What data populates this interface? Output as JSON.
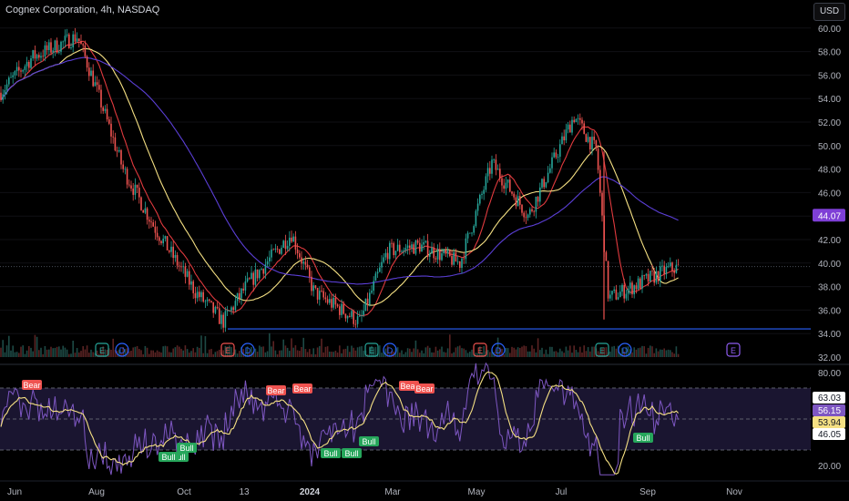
{
  "header": {
    "title": "Cognex Corporation, 4h, NASDAQ",
    "currency_button": "USD"
  },
  "colors": {
    "background": "#000000",
    "up": "#26a69a",
    "down": "#ef5350",
    "ma_fast": "#e03a3e",
    "ma_mid": "#f5e083",
    "ma_slow": "#5b3fd6",
    "support": "#2962ff",
    "rsi": "#7e57c2",
    "rsi_signal": "#f5e083"
  },
  "price_axis": {
    "labels": [
      "60.00",
      "58.00",
      "56.00",
      "54.00",
      "52.00",
      "50.00",
      "48.00",
      "46.00",
      "44.00",
      "42.00",
      "40.00",
      "38.00",
      "36.00",
      "34.00",
      "32.00"
    ],
    "current_price_tag": "44.07"
  },
  "rsi_axis": {
    "labels": [
      "80.00",
      "20.00"
    ],
    "value_tags": [
      {
        "text": "63.03",
        "style": "white"
      },
      {
        "text": "56.15",
        "style": "violet"
      },
      {
        "text": "53.94",
        "style": "yellow"
      },
      {
        "text": "46.05",
        "style": "white"
      }
    ]
  },
  "time_axis": {
    "labels": [
      "Jun",
      "Aug",
      "Oct",
      "13",
      "2024",
      "Mar",
      "May",
      "Jul",
      "Sep",
      "Nov"
    ]
  },
  "event_markers": [
    "E",
    "D",
    "E",
    "D",
    "E",
    "D",
    "E",
    "D",
    "E",
    "D",
    "E"
  ],
  "rsi_signals": [
    "Bear",
    "Bear",
    "Bear",
    "Bear",
    "Bear",
    "Bull",
    "Bull",
    "Bull",
    "Bull",
    "Bull",
    "Bull",
    "Bull"
  ],
  "chart_data": {
    "type": "candlestick",
    "title": "Cognex Corporation, 4h, NASDAQ",
    "price_range": [
      32,
      61
    ],
    "support_level": 34.4,
    "close_path": [
      {
        "x": "Jun",
        "y": 54.5
      },
      {
        "x": "Jul",
        "y": 57.5
      },
      {
        "x": "Jul-end",
        "y": 59.3
      },
      {
        "x": "Aug",
        "y": 55.0
      },
      {
        "x": "Aug-mid",
        "y": 48.0
      },
      {
        "x": "Sep",
        "y": 43.0
      },
      {
        "x": "Oct",
        "y": 37.5
      },
      {
        "x": "Oct-end",
        "y": 35.0
      },
      {
        "x": "13",
        "y": 38.0
      },
      {
        "x": "Dec",
        "y": 42.5
      },
      {
        "x": "2024",
        "y": 37.5
      },
      {
        "x": "Feb",
        "y": 35.0
      },
      {
        "x": "Mar",
        "y": 41.0
      },
      {
        "x": "Apr",
        "y": 41.5
      },
      {
        "x": "May",
        "y": 40.0
      },
      {
        "x": "May-end",
        "y": 48.5
      },
      {
        "x": "Jun",
        "y": 44.0
      },
      {
        "x": "Jul",
        "y": 52.5
      },
      {
        "x": "Jul-end",
        "y": 49.5
      },
      {
        "x": "Aug",
        "y": 37.0
      },
      {
        "x": "Sep",
        "y": 39.5
      },
      {
        "x": "Sep-mid",
        "y": 39.6
      }
    ],
    "rsi_range": [
      14,
      86
    ],
    "rsi_upper": 70,
    "rsi_lower": 30,
    "rsi_mid": 50
  }
}
